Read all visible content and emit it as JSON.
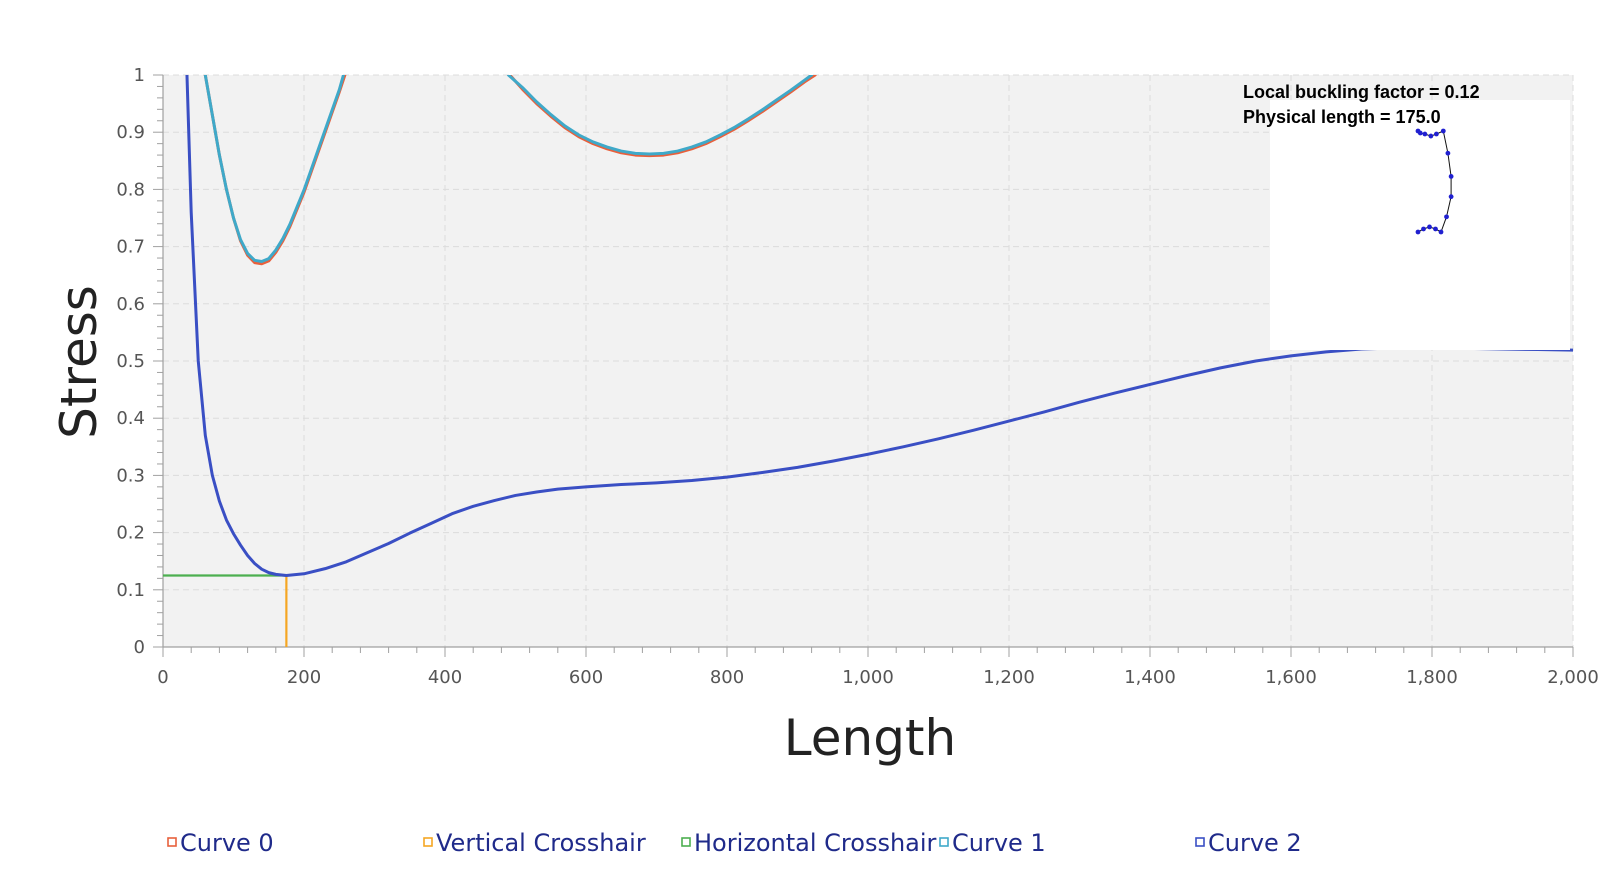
{
  "chart_data": {
    "type": "line",
    "title": "",
    "xlabel": "Length",
    "ylabel": "Stress",
    "xlim": [
      0,
      2000
    ],
    "ylim": [
      0,
      1
    ],
    "x_ticks": [
      0,
      200,
      400,
      600,
      800,
      1000,
      1200,
      1400,
      1600,
      1800,
      2000
    ],
    "x_tick_labels": [
      "0",
      "200",
      "400",
      "600",
      "800",
      "1,000",
      "1,200",
      "1,400",
      "1,600",
      "1,800",
      "2,000"
    ],
    "y_ticks": [
      0,
      0.1,
      0.2,
      0.3,
      0.4,
      0.5,
      0.6,
      0.7,
      0.8,
      0.9,
      1
    ],
    "y_tick_labels": [
      "0",
      "0.1",
      "0.2",
      "0.3",
      "0.4",
      "0.5",
      "0.6",
      "0.7",
      "0.8",
      "0.9",
      "1"
    ],
    "grid": true,
    "legend_position": "bottom",
    "series": [
      {
        "name": "Curve 0",
        "color": "#e8603c",
        "segments": [
          [
            [
              60,
              1.0
            ],
            [
              70,
              0.93
            ],
            [
              80,
              0.86
            ],
            [
              90,
              0.8
            ],
            [
              100,
              0.75
            ],
            [
              110,
              0.71
            ],
            [
              120,
              0.685
            ],
            [
              130,
              0.672
            ],
            [
              140,
              0.67
            ],
            [
              150,
              0.675
            ],
            [
              160,
              0.69
            ],
            [
              170,
              0.71
            ],
            [
              180,
              0.735
            ],
            [
              190,
              0.765
            ],
            [
              200,
              0.795
            ],
            [
              210,
              0.83
            ],
            [
              220,
              0.865
            ],
            [
              230,
              0.9
            ],
            [
              240,
              0.935
            ],
            [
              250,
              0.97
            ],
            [
              258,
              1.0
            ]
          ],
          [
            [
              492,
              1.0
            ],
            [
              510,
              0.975
            ],
            [
              530,
              0.95
            ],
            [
              550,
              0.928
            ],
            [
              570,
              0.908
            ],
            [
              590,
              0.892
            ],
            [
              610,
              0.88
            ],
            [
              630,
              0.871
            ],
            [
              650,
              0.864
            ],
            [
              670,
              0.86
            ],
            [
              690,
              0.859
            ],
            [
              710,
              0.86
            ],
            [
              730,
              0.864
            ],
            [
              750,
              0.871
            ],
            [
              770,
              0.88
            ],
            [
              790,
              0.892
            ],
            [
              810,
              0.905
            ],
            [
              830,
              0.92
            ],
            [
              850,
              0.936
            ],
            [
              870,
              0.953
            ],
            [
              890,
              0.97
            ],
            [
              910,
              0.988
            ],
            [
              925,
              1.0
            ]
          ]
        ]
      },
      {
        "name": "Vertical Crosshair",
        "color": "#f5a623",
        "x": [
          175,
          175
        ],
        "y": [
          0,
          0.125
        ]
      },
      {
        "name": "Horizontal Crosshair",
        "color": "#4caf50",
        "x": [
          0,
          175
        ],
        "y": [
          0.125,
          0.125
        ]
      },
      {
        "name": "Curve 1",
        "color": "#3fa9c9",
        "segments": [
          [
            [
              60,
              1.0
            ],
            [
              70,
              0.93
            ],
            [
              80,
              0.86
            ],
            [
              90,
              0.8
            ],
            [
              100,
              0.75
            ],
            [
              110,
              0.712
            ],
            [
              120,
              0.688
            ],
            [
              130,
              0.676
            ],
            [
              140,
              0.674
            ],
            [
              150,
              0.679
            ],
            [
              160,
              0.694
            ],
            [
              170,
              0.714
            ],
            [
              180,
              0.739
            ],
            [
              190,
              0.769
            ],
            [
              200,
              0.799
            ],
            [
              210,
              0.834
            ],
            [
              220,
              0.869
            ],
            [
              230,
              0.904
            ],
            [
              240,
              0.939
            ],
            [
              250,
              0.974
            ],
            [
              256,
              1.0
            ]
          ],
          [
            [
              490,
              1.0
            ],
            [
              510,
              0.978
            ],
            [
              530,
              0.953
            ],
            [
              550,
              0.931
            ],
            [
              570,
              0.911
            ],
            [
              590,
              0.895
            ],
            [
              610,
              0.883
            ],
            [
              630,
              0.874
            ],
            [
              650,
              0.867
            ],
            [
              670,
              0.863
            ],
            [
              690,
              0.862
            ],
            [
              710,
              0.863
            ],
            [
              730,
              0.867
            ],
            [
              750,
              0.874
            ],
            [
              770,
              0.883
            ],
            [
              790,
              0.895
            ],
            [
              810,
              0.908
            ],
            [
              830,
              0.923
            ],
            [
              850,
              0.939
            ],
            [
              870,
              0.956
            ],
            [
              890,
              0.973
            ],
            [
              910,
              0.991
            ],
            [
              920,
              1.0
            ]
          ]
        ]
      },
      {
        "name": "Curve 2",
        "color": "#3a4fc4",
        "segments": [
          [
            [
              34,
              1.0
            ],
            [
              40,
              0.76
            ],
            [
              50,
              0.5
            ],
            [
              60,
              0.37
            ],
            [
              70,
              0.3
            ],
            [
              80,
              0.255
            ],
            [
              90,
              0.222
            ],
            [
              100,
              0.198
            ],
            [
              110,
              0.178
            ],
            [
              120,
              0.16
            ],
            [
              130,
              0.146
            ],
            [
              140,
              0.136
            ],
            [
              150,
              0.13
            ],
            [
              160,
              0.127
            ],
            [
              175,
              0.125
            ],
            [
              200,
              0.128
            ],
            [
              230,
              0.137
            ],
            [
              260,
              0.149
            ],
            [
              290,
              0.165
            ],
            [
              320,
              0.181
            ],
            [
              350,
              0.199
            ],
            [
              380,
              0.216
            ],
            [
              410,
              0.233
            ],
            [
              440,
              0.246
            ],
            [
              470,
              0.256
            ],
            [
              500,
              0.265
            ],
            [
              530,
              0.271
            ],
            [
              560,
              0.276
            ],
            [
              600,
              0.28
            ],
            [
              650,
              0.284
            ],
            [
              700,
              0.287
            ],
            [
              750,
              0.291
            ],
            [
              800,
              0.297
            ],
            [
              850,
              0.305
            ],
            [
              900,
              0.314
            ],
            [
              950,
              0.325
            ],
            [
              1000,
              0.337
            ],
            [
              1050,
              0.35
            ],
            [
              1100,
              0.364
            ],
            [
              1150,
              0.379
            ],
            [
              1200,
              0.395
            ],
            [
              1250,
              0.411
            ],
            [
              1300,
              0.428
            ],
            [
              1350,
              0.444
            ],
            [
              1400,
              0.459
            ],
            [
              1450,
              0.474
            ],
            [
              1500,
              0.488
            ],
            [
              1550,
              0.5
            ],
            [
              1600,
              0.509
            ],
            [
              1650,
              0.516
            ],
            [
              1700,
              0.521
            ],
            [
              1750,
              0.523
            ],
            [
              1800,
              0.523
            ],
            [
              1850,
              0.522
            ],
            [
              1900,
              0.521
            ],
            [
              1950,
              0.52
            ],
            [
              2000,
              0.519
            ]
          ]
        ]
      }
    ],
    "annotations": [
      "Local buckling factor = 0.12",
      "Physical length = 175.0"
    ],
    "inset_shape": {
      "description_free": true,
      "points": [
        [
          0.0,
          0.0
        ],
        [
          0.12,
          0.03
        ],
        [
          0.25,
          0.05
        ],
        [
          0.38,
          0.03
        ],
        [
          0.5,
          0.0
        ],
        [
          0.62,
          0.15
        ],
        [
          0.72,
          0.35
        ],
        [
          0.72,
          0.55
        ],
        [
          0.65,
          0.78
        ],
        [
          0.55,
          1.0
        ],
        [
          0.4,
          0.97
        ],
        [
          0.28,
          0.95
        ],
        [
          0.15,
          0.97
        ],
        [
          0.05,
          0.98
        ],
        [
          0.0,
          1.0
        ]
      ]
    }
  }
}
